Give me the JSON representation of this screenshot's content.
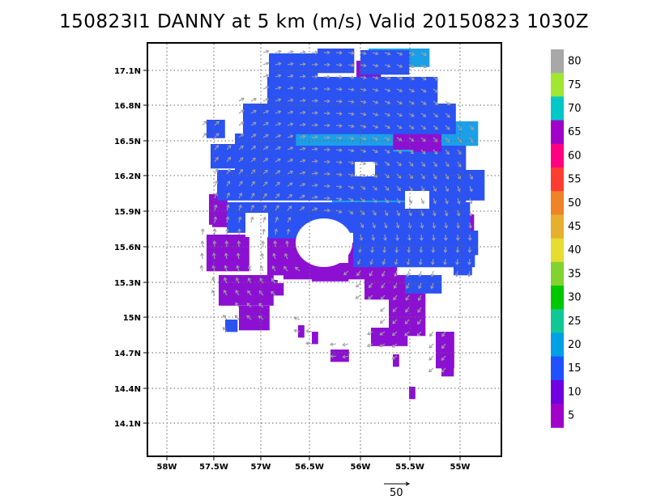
{
  "title": "150823I1 DANNY at 5 km (m/s) Valid 20150823 1030Z",
  "lat_ticks": [
    "17.1N",
    "16.8N",
    "16.5N",
    "16.2N",
    "15.9N",
    "15.6N",
    "15.3N",
    "15N",
    "14.7N",
    "14.4N",
    "14.1N"
  ],
  "lon_ticks": [
    "58W",
    "57.5W",
    "57W",
    "56.5W",
    "56W",
    "55.5W",
    "55W"
  ],
  "colorbar": {
    "labels": [
      "80",
      "75",
      "70",
      "65",
      "60",
      "55",
      "50",
      "45",
      "40",
      "35",
      "30",
      "25",
      "20",
      "15",
      "10",
      "5"
    ],
    "colors": [
      "#a8a8a8",
      "#a0e632",
      "#00c8c8",
      "#a000c8",
      "#ff0080",
      "#ff3c32",
      "#f08228",
      "#e6af2d",
      "#e6dc32",
      "#82d232",
      "#00c800",
      "#10c896",
      "#00a0e6",
      "#2050ff",
      "#7000e0",
      "#a000c8"
    ]
  },
  "reference_vector": {
    "value": "50"
  },
  "field_colors": {
    "below_10": "#8c10d2",
    "from_10": "#2b52f2",
    "from_15": "#1b9fe8",
    "from_20": "#18b8c8",
    "from_25": "#20c090",
    "vector": "#a0a0a0"
  }
}
